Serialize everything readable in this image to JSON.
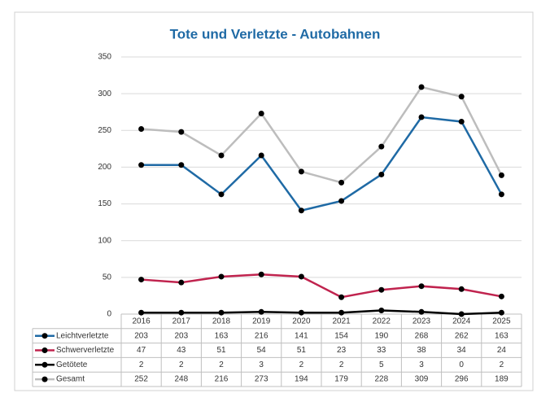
{
  "chart_data": {
    "type": "line",
    "title": "Tote und Verletzte - Autobahnen",
    "categories": [
      "2016",
      "2017",
      "2018",
      "2019",
      "2020",
      "2021",
      "2022",
      "2023",
      "2024",
      "2025"
    ],
    "series": [
      {
        "name": "Leichtverletzte",
        "color": "#1f6aa5",
        "values": [
          203,
          203,
          163,
          216,
          141,
          154,
          190,
          268,
          262,
          163
        ]
      },
      {
        "name": "Schwerverletzte",
        "color": "#c0234e",
        "values": [
          47,
          43,
          51,
          54,
          51,
          23,
          33,
          38,
          34,
          24
        ]
      },
      {
        "name": "Getötete",
        "color": "#000000",
        "values": [
          2,
          2,
          2,
          3,
          2,
          2,
          5,
          3,
          0,
          2
        ]
      },
      {
        "name": "Gesamt",
        "color": "#bdbdbd",
        "values": [
          252,
          248,
          216,
          273,
          194,
          179,
          228,
          309,
          296,
          189
        ]
      }
    ],
    "marker_color": "#000000",
    "ylim": [
      0,
      350
    ],
    "yticks": [
      0,
      50,
      100,
      150,
      200,
      250,
      300,
      350
    ],
    "grid": true
  }
}
